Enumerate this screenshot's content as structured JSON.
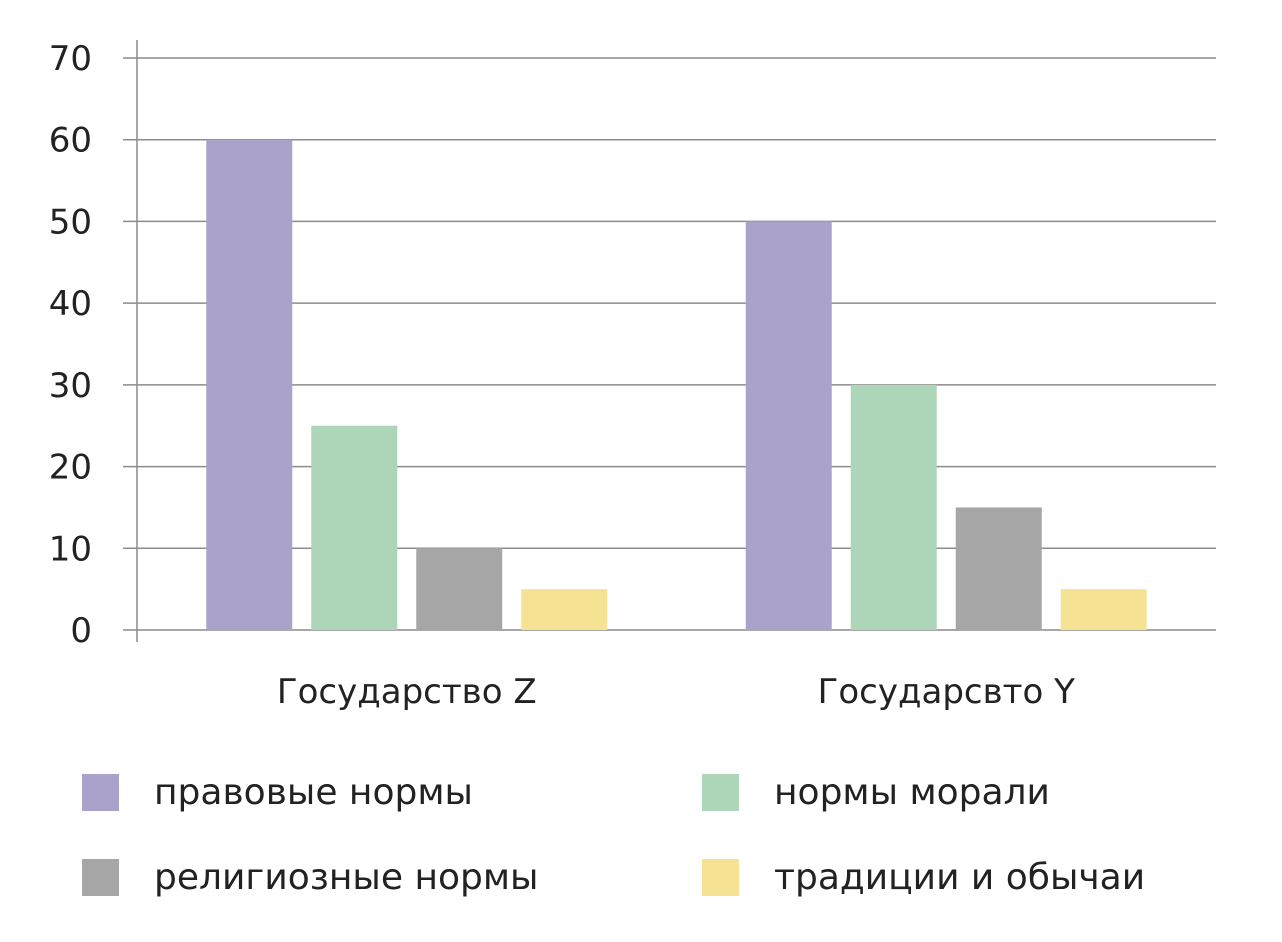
{
  "chart_data": {
    "type": "bar",
    "categories": [
      "Государство Z",
      "Государсвто Y"
    ],
    "series": [
      {
        "name": "правовые нормы",
        "values": [
          60,
          50
        ],
        "color": "#ABA2CC"
      },
      {
        "name": "нормы морали",
        "values": [
          25,
          30
        ],
        "color": "#ADD5B7"
      },
      {
        "name": "религиозные нормы",
        "values": [
          10,
          15
        ],
        "color": "#A6A6A6"
      },
      {
        "name": "традиции и обычаи",
        "values": [
          5,
          5
        ],
        "color": "#F5E393"
      }
    ],
    "ylim": [
      0,
      70
    ],
    "yticks": [
      "0",
      "10",
      "20",
      "30",
      "40",
      "50",
      "60",
      "70"
    ],
    "grid": true,
    "legend": "bottom",
    "title": "",
    "xlabel": "",
    "ylabel": ""
  }
}
